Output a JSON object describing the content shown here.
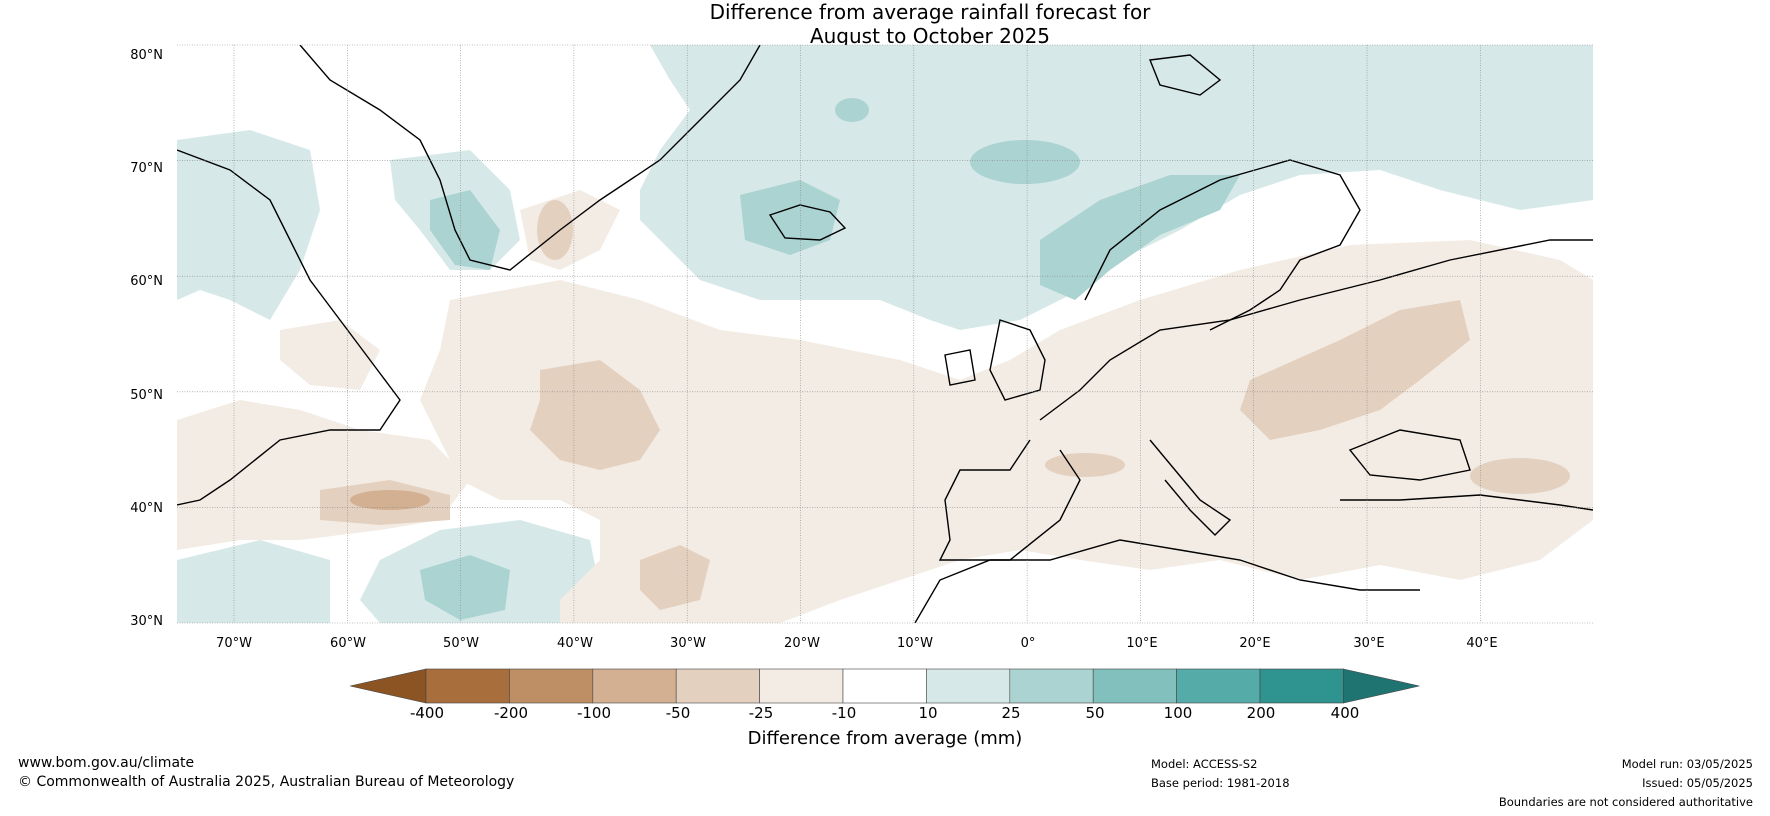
{
  "title_line1": "Difference from average rainfall forecast for",
  "title_line2": "August to October 2025",
  "lat_ticks": [
    "80°N",
    "70°N",
    "60°N",
    "50°N",
    "40°N",
    "30°N"
  ],
  "lon_ticks": [
    "70°W",
    "60°W",
    "50°W",
    "40°W",
    "30°W",
    "20°W",
    "10°W",
    "0°",
    "10°E",
    "20°E",
    "30°E",
    "40°E"
  ],
  "colorbar": {
    "ticks": [
      "-400",
      "-200",
      "-100",
      "-50",
      "-25",
      "-10",
      "10",
      "25",
      "50",
      "100",
      "200",
      "400"
    ],
    "colors": [
      "#8c5422",
      "#a86e3c",
      "#be8e64",
      "#d2b091",
      "#e4d0bf",
      "#f3ece5",
      "#ffffff",
      "#d6e9e8",
      "#aad3d1",
      "#82c0bd",
      "#55aba8",
      "#2f9390",
      "#1f7472"
    ],
    "label": "Difference from average (mm)"
  },
  "footer": {
    "website": "www.bom.gov.au/climate",
    "copyright": "© Commonwealth of Australia 2025, Australian Bureau of Meteorology",
    "model": "Model: ACCESS-S2",
    "base_period": "Base period: 1981-2018",
    "model_run": "Model run: 03/05/2025",
    "issued": "Issued: 05/05/2025",
    "disclaimer": "Boundaries are not considered authoritative"
  }
}
